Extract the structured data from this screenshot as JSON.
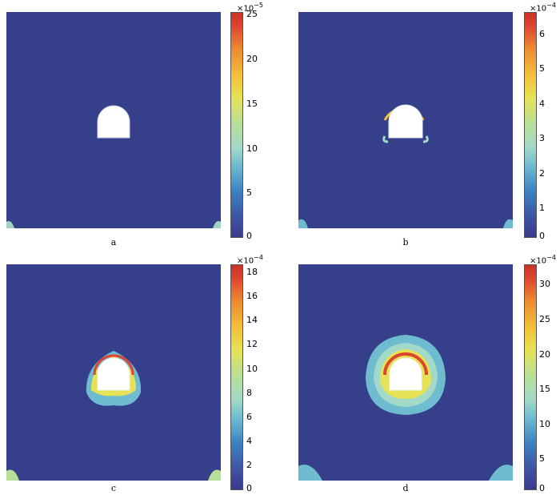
{
  "panels": [
    {
      "label": "a",
      "exponent_base": "×10",
      "exponent_power": "−5",
      "ticks": [
        "25",
        "20",
        "15",
        "10",
        "5",
        "0"
      ],
      "max_value": 25,
      "stage": 0
    },
    {
      "label": "b",
      "exponent_base": "×10",
      "exponent_power": "−4",
      "ticks": [
        "6",
        "5",
        "4",
        "3",
        "2",
        "1",
        "0"
      ],
      "max_value": 6.4,
      "stage": 1
    },
    {
      "label": "c",
      "exponent_base": "×10",
      "exponent_power": "−4",
      "ticks": [
        "18",
        "16",
        "14",
        "12",
        "10",
        "8",
        "6",
        "4",
        "2",
        "0"
      ],
      "max_value": 18.2,
      "stage": 2
    },
    {
      "label": "d",
      "exponent_base": "×10",
      "exponent_power": "−4",
      "ticks": [
        "30",
        "25",
        "20",
        "15",
        "10",
        "5",
        "0"
      ],
      "max_value": 32,
      "stage": 3
    }
  ],
  "colors": {
    "background_field": "#353f8a",
    "colormap": [
      "#3a3b8c",
      "#3a7fc1",
      "#a3d9c8",
      "#e6e255",
      "#ee8a2f",
      "#c83228"
    ]
  }
}
